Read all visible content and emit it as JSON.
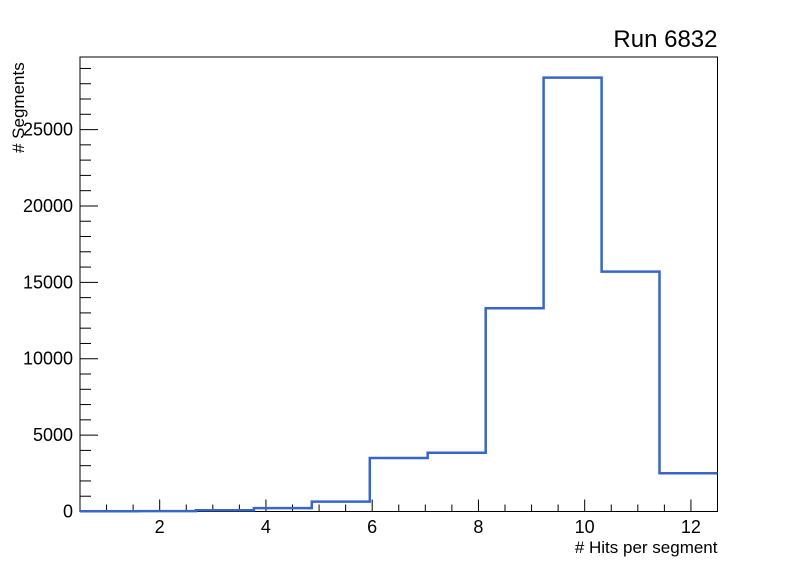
{
  "chart_data": {
    "type": "histogram",
    "title": "Run 6832",
    "xlabel": "# Hits per segment",
    "ylabel": "# Segments",
    "bin_edges": [
      0.5,
      1.591,
      2.682,
      3.773,
      4.864,
      5.955,
      7.045,
      8.136,
      9.227,
      10.318,
      11.409,
      12.5
    ],
    "values": [
      10,
      25,
      80,
      220,
      650,
      3500,
      3850,
      13300,
      28400,
      15700,
      2500
    ],
    "xlim": [
      0.5,
      12.5
    ],
    "ylim": [
      0,
      29750
    ],
    "x_major_ticks": [
      2,
      4,
      6,
      8,
      10,
      12
    ],
    "x_tick_labels": [
      "2",
      "4",
      "6",
      "8",
      "10",
      "12"
    ],
    "x_minor_step": 0.5,
    "y_major_ticks": [
      0,
      5000,
      10000,
      15000,
      20000,
      25000
    ],
    "y_tick_labels": [
      "0",
      "5000",
      "10000",
      "15000",
      "20000",
      "25000"
    ],
    "y_minor_step": 1000,
    "grid": false,
    "legend_position": "none",
    "line_color": "#3766c8",
    "axis_color": "#000000",
    "background_color": "#ffffff"
  }
}
